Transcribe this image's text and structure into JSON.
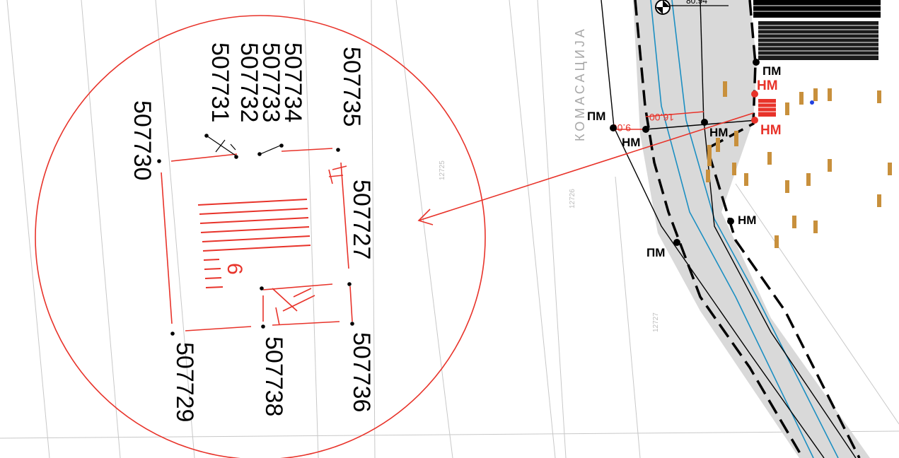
{
  "zoom_inset": {
    "point_ids": {
      "p507735": "507735",
      "p507734": "507734",
      "p507733": "507733",
      "p507732": "507732",
      "p507731": "507731",
      "p507730": "507730",
      "p507727": "507727",
      "p507729": "507729",
      "p507738": "507738",
      "p507736": "507736"
    },
    "building_number": "6"
  },
  "map": {
    "region_name": "КОМАСАЦИЈА",
    "road_labels": {
      "pm": "ПМ",
      "nm": "НМ"
    },
    "dimensions": {
      "d1": "9.00",
      "d2": "16.00"
    },
    "top_label": "80.94",
    "parcels": {
      "a": "12725",
      "b": "12726",
      "c": "12727"
    }
  },
  "colors": {
    "red": "#e8332a",
    "road_fill": "#d9d9d9",
    "blue": "#1c8fc2",
    "annotation_orange": "#c8903c"
  }
}
